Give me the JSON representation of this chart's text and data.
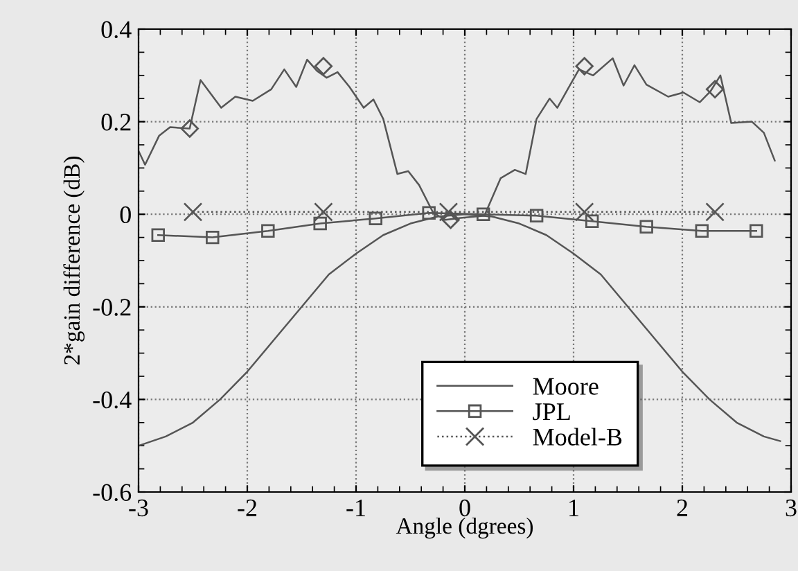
{
  "chart_data": {
    "type": "line",
    "xlabel": "Angle (dgrees)",
    "ylabel": "2*gain difference (dB)",
    "xlim": [
      -3,
      3
    ],
    "xticks": [
      -3,
      -2,
      -1,
      0,
      1,
      2,
      3
    ],
    "ylim": [
      -0.6,
      0.4
    ],
    "yticks": [
      -0.6,
      -0.4,
      -0.2,
      0,
      0.2,
      0.4
    ],
    "grid": true,
    "legend": "bottom",
    "series": [
      {
        "name": "Moore",
        "color": "#555555",
        "marker": "none",
        "line_style": "solid",
        "x": [
          -3,
          -2.75,
          -2.5,
          -2.25,
          -2,
          -1.75,
          -1.5,
          -1.25,
          -1,
          -0.75,
          -0.5,
          -0.25,
          0,
          0.25,
          0.5,
          0.75,
          1,
          1.25,
          1.5,
          1.75,
          2,
          2.25,
          2.5,
          2.75,
          2.9
        ],
        "values": [
          -0.5,
          -0.48,
          -0.45,
          -0.4,
          -0.34,
          -0.27,
          -0.2,
          -0.13,
          -0.085,
          -0.045,
          -0.02,
          -0.005,
          0,
          -0.005,
          -0.02,
          -0.045,
          -0.085,
          -0.13,
          -0.2,
          -0.27,
          -0.34,
          -0.4,
          -0.45,
          -0.48,
          -0.49
        ]
      },
      {
        "name": "JPL",
        "color": "#555555",
        "marker": "square",
        "line_style": "solid",
        "x": [
          -2.82,
          -2.32,
          -1.81,
          -1.33,
          -0.82,
          -0.33,
          0.17,
          0.66,
          1.17,
          1.67,
          2.18,
          2.68
        ],
        "values": [
          -0.045,
          -0.05,
          -0.036,
          -0.02,
          -0.009,
          0.003,
          0.0,
          -0.003,
          -0.015,
          -0.027,
          -0.036,
          -0.036
        ]
      },
      {
        "color": "#555555",
        "marker": "none",
        "line_style": "solid",
        "x": [
          -3.0,
          -2.94,
          -2.81,
          -2.71,
          -2.53,
          -2.43,
          -2.24,
          -2.11,
          -1.95,
          -1.78,
          -1.66,
          -1.55,
          -1.45,
          -1.36,
          -1.27,
          -1.17,
          -1.06,
          -0.93,
          -0.84,
          -0.75,
          -0.62,
          -0.52,
          -0.42,
          -0.29,
          -0.18,
          -0.04,
          0.18,
          0.33,
          0.46,
          0.56,
          0.66,
          0.78,
          0.85,
          0.97,
          1.05,
          1.18,
          1.36,
          1.46,
          1.56,
          1.67,
          1.87,
          2.01,
          2.16,
          2.26,
          2.35,
          2.45,
          2.64,
          2.75,
          2.85
        ],
        "values": [
          0.137,
          0.107,
          0.17,
          0.188,
          0.185,
          0.29,
          0.23,
          0.254,
          0.245,
          0.27,
          0.313,
          0.275,
          0.334,
          0.31,
          0.295,
          0.307,
          0.275,
          0.23,
          0.248,
          0.206,
          0.087,
          0.093,
          0.063,
          0.003,
          -0.012,
          -0.008,
          -0.003,
          0.078,
          0.096,
          0.087,
          0.206,
          0.25,
          0.23,
          0.28,
          0.313,
          0.3,
          0.337,
          0.278,
          0.322,
          0.28,
          0.254,
          0.263,
          0.242,
          0.266,
          0.3,
          0.197,
          0.2,
          0.176,
          0.116
        ]
      },
      {
        "type": "scatter",
        "color": "#555555",
        "marker": "diamond",
        "x": [
          -2.53,
          -1.3,
          -0.13,
          1.1,
          2.3
        ],
        "values": [
          0.185,
          0.32,
          -0.012,
          0.32,
          0.27
        ]
      },
      {
        "name": "Model-B",
        "color": "#555555",
        "marker": "cross",
        "line_style": "dotted",
        "x": [
          -2.5,
          -1.3,
          -0.15,
          1.1,
          2.3
        ],
        "values": [
          0.005,
          0.005,
          0.005,
          0.005,
          0.005
        ]
      }
    ]
  }
}
